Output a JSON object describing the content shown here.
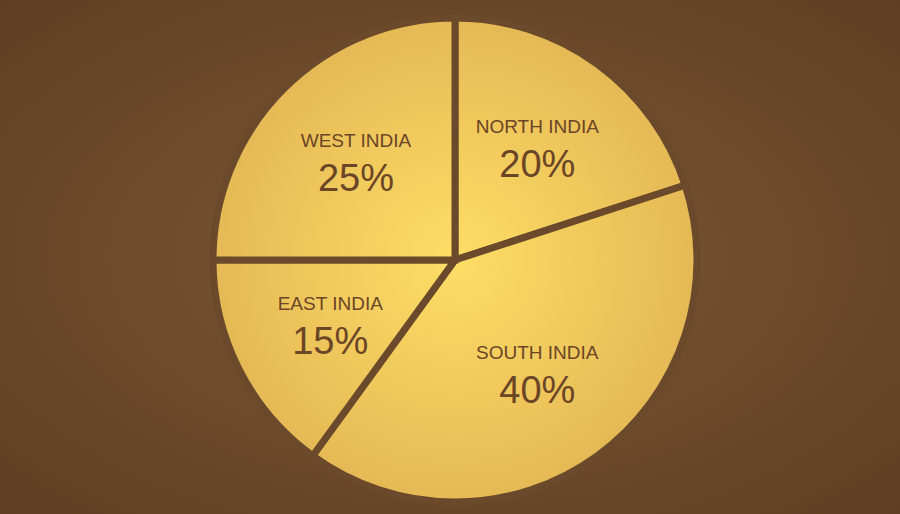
{
  "chart_data": {
    "type": "pie",
    "categories": [
      "NORTH INDIA",
      "SOUTH INDIA",
      "EAST INDIA",
      "WEST INDIA"
    ],
    "values": [
      20,
      40,
      15,
      25
    ],
    "value_labels": [
      "20%",
      "40%",
      "15%",
      "25%"
    ],
    "data_labels": true,
    "color": "#f2c35a"
  }
}
